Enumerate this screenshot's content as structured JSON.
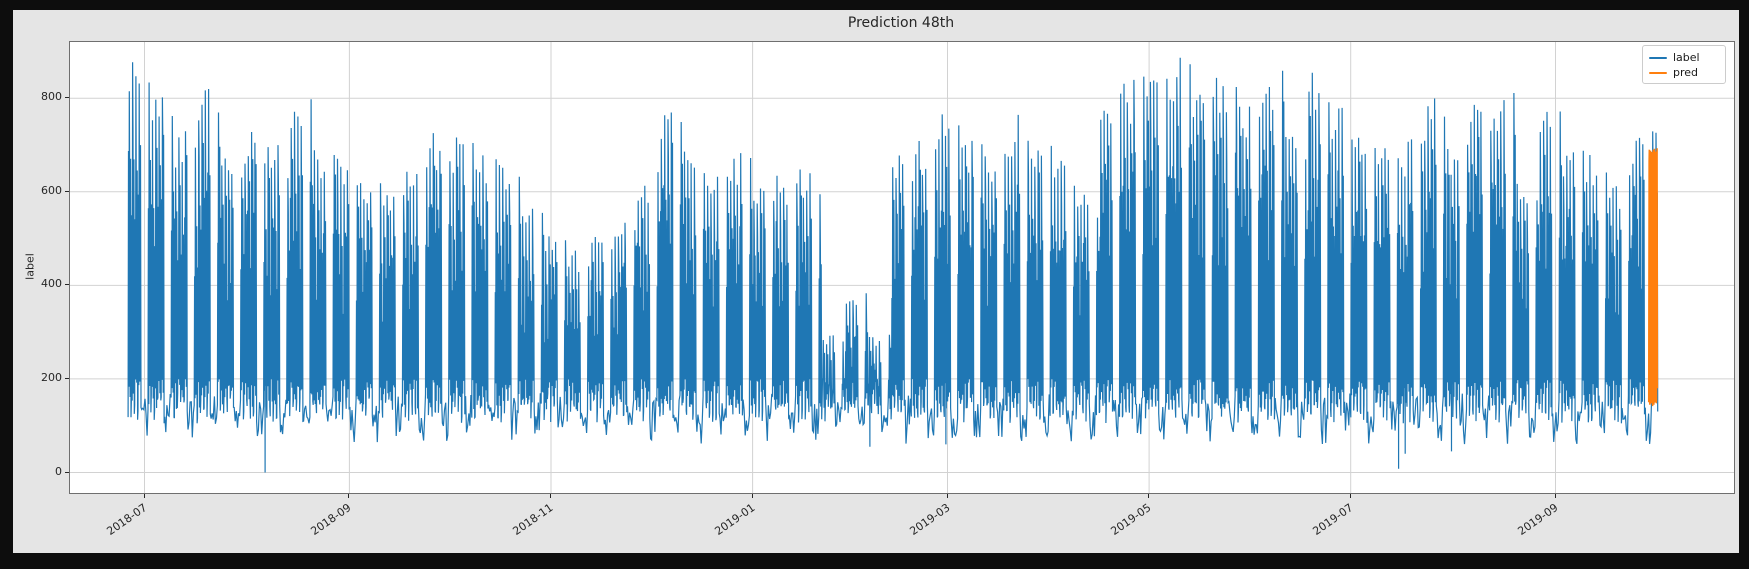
{
  "colors": {
    "page_frame": "#0d0d0d",
    "figure_background": "#e5e5e5",
    "plot_background": "#ffffff",
    "grid": "#d2d2d2",
    "spine": "#6f6f6f",
    "text": "#262626",
    "label_series": "#1f77b4",
    "pred_series": "#ff7f0e"
  },
  "chart_data": {
    "type": "line",
    "title": "Prediction 48th",
    "xlabel": "",
    "ylabel": "label",
    "grid": true,
    "y_ticks": [
      0,
      200,
      400,
      600,
      800
    ],
    "ylim": [
      -44,
      920
    ],
    "x_ticks": [
      {
        "label": "2018-07",
        "day": 5
      },
      {
        "label": "2018-09",
        "day": 67
      },
      {
        "label": "2018-11",
        "day": 128
      },
      {
        "label": "2019-01",
        "day": 189
      },
      {
        "label": "2019-03",
        "day": 248
      },
      {
        "label": "2019-05",
        "day": 309
      },
      {
        "label": "2019-07",
        "day": 370
      },
      {
        "label": "2019-09",
        "day": 432
      }
    ],
    "x_axis_note": "day index 0 = first plotted sample (~2018-06-26); data ends ~2019-10-02",
    "legend": {
      "position": "upper right",
      "entries": [
        {
          "label": "label",
          "color": "#1f77b4"
        },
        {
          "label": "pred",
          "color": "#ff7f0e"
        }
      ]
    },
    "series": [
      {
        "name": "label",
        "color": "#1f77b4",
        "representation": "dense sub-daily series; values estimated as weekly peak envelope with weekday spikes (peaks below) and weekend/night baseline lows of ~60-200",
        "days_total": 463,
        "start_weekday_index": 1,
        "baseline_low_range": [
          60,
          200
        ],
        "weekly_peaks": [
          875,
          760,
          700,
          790,
          665,
          700,
          670,
          755,
          650,
          640,
          615,
          575,
          640,
          690,
          680,
          650,
          635,
          560,
          500,
          450,
          475,
          505,
          615,
          745,
          650,
          640,
          655,
          600,
          615,
          620,
          290,
          380,
          285,
          650,
          680,
          760,
          680,
          650,
          725,
          690,
          640,
          575,
          780,
          800,
          810,
          845,
          775,
          815,
          745,
          825,
          705,
          830,
          760,
          700,
          690,
          680,
          760,
          665,
          780,
          785,
          600,
          735,
          680,
          660,
          600,
          690,
          745
        ],
        "dips": [
          {
            "day": 41,
            "value": 0
          },
          {
            "day": 224,
            "value": 55
          },
          {
            "day": 247,
            "value": 60
          },
          {
            "day": 384,
            "value": 8
          },
          {
            "day": 386,
            "value": 40
          },
          {
            "day": 400,
            "value": 45
          }
        ]
      },
      {
        "name": "pred",
        "color": "#ff7f0e",
        "representation": "48-step forecast overlaid at the series end, oscillating between ~140 and ~690",
        "start_day": 460.2,
        "step_days": 0.056,
        "values": [
          150,
          420,
          665,
          690,
          540,
          210,
          145,
          160,
          380,
          640,
          688,
          575,
          250,
          150,
          148,
          350,
          620,
          685,
          600,
          290,
          155,
          142,
          330,
          605,
          690,
          615,
          310,
          160,
          145,
          360,
          635,
          692,
          580,
          270,
          150,
          152,
          395,
          650,
          686,
          560,
          235,
          148,
          155,
          410,
          660,
          693,
          520,
          180
        ]
      }
    ]
  }
}
